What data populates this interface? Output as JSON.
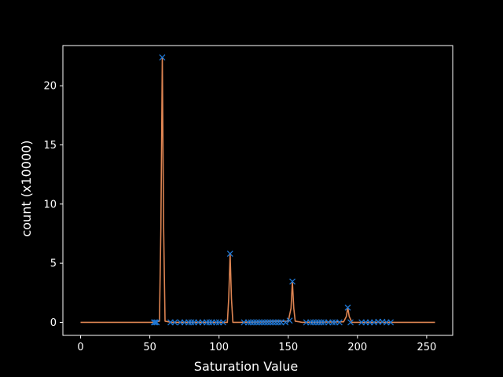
{
  "chart_data": {
    "type": "line",
    "title": "",
    "xlabel": "Saturation Value",
    "ylabel": "count (x10000)",
    "xlim": [
      -12.8,
      268.8
    ],
    "ylim": [
      -1.1,
      23.4
    ],
    "xticks": [
      0,
      50,
      100,
      150,
      200,
      250
    ],
    "yticks": [
      0,
      5,
      10,
      15,
      20
    ],
    "grid": false,
    "legend": "none",
    "colors": {
      "background": "#000000",
      "axes": "#ffffff",
      "line": "#dd8452",
      "marker": "#1f77d4"
    },
    "series": [
      {
        "kind": "line",
        "x": [
          0,
          52,
          57,
          58,
          59,
          60,
          61,
          66,
          106,
          107,
          108,
          109,
          110,
          115,
          150,
          152,
          153,
          154,
          155,
          160,
          190,
          192,
          193,
          194,
          196,
          256
        ],
        "y": [
          0,
          0,
          0.1,
          8,
          22.4,
          8,
          0.1,
          0,
          0,
          2,
          5.8,
          2,
          0,
          0,
          0.1,
          1.2,
          3.45,
          1.2,
          0.1,
          0,
          0.05,
          0.5,
          1.25,
          0.5,
          0,
          0
        ]
      },
      {
        "kind": "scatter",
        "marker": "x",
        "x": [
          53,
          54,
          55,
          59,
          65,
          68,
          72,
          75,
          78,
          80,
          82,
          85,
          88,
          91,
          93,
          95,
          98,
          100,
          103,
          108,
          118,
          121,
          123,
          125,
          127,
          129,
          131,
          133,
          135,
          137,
          139,
          141,
          143,
          145,
          148,
          151,
          153,
          163,
          166,
          168,
          170,
          172,
          174,
          176,
          179,
          182,
          184,
          187,
          193,
          195,
          203,
          206,
          209,
          212,
          215,
          218,
          221,
          224
        ],
        "y": [
          0,
          0,
          0,
          22.4,
          0,
          0,
          0,
          0,
          0,
          0,
          0,
          0,
          0,
          0,
          0,
          0,
          0,
          0,
          0,
          5.8,
          0,
          0,
          0,
          0,
          0,
          0,
          0,
          0,
          0,
          0,
          0,
          0,
          0,
          0,
          0,
          0.15,
          3.45,
          0,
          0,
          0,
          0,
          0,
          0,
          0,
          0,
          0,
          0,
          0,
          1.25,
          0,
          0,
          0,
          0,
          0,
          0.05,
          0.05,
          0,
          0
        ]
      }
    ]
  }
}
